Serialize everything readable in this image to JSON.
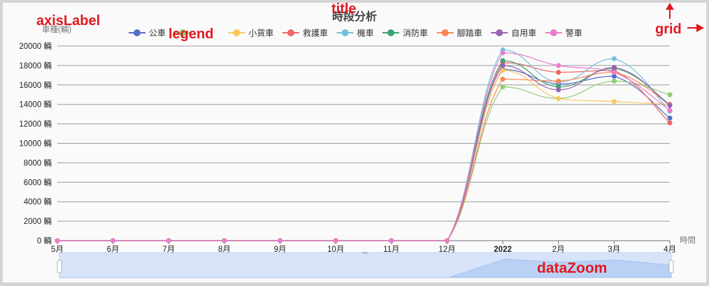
{
  "annotations": {
    "axis_label": "axisLabel",
    "title": "title",
    "legend": "legend",
    "grid": "grid",
    "data_zoom": "dataZoom",
    "color": "#e0191f"
  },
  "chart_data": {
    "type": "line",
    "title": "時段分析",
    "ylabel": "車種(輛)",
    "xlabel": "時間",
    "y_unit": "輛",
    "ylim": [
      0,
      20000
    ],
    "y_ticks": [
      0,
      2000,
      4000,
      6000,
      8000,
      10000,
      12000,
      14000,
      16000,
      18000,
      20000
    ],
    "categories": [
      "5月",
      "6月",
      "7月",
      "8月",
      "9月",
      "10月",
      "11月",
      "12月",
      "2022",
      "2月",
      "3月",
      "4月"
    ],
    "bold_categories": [
      "2022"
    ],
    "grid": true,
    "legend_position": "top",
    "smooth": true,
    "series": [
      {
        "name": "公車",
        "color": "#5470c6",
        "values": [
          0,
          0,
          0,
          0,
          0,
          0,
          0,
          0,
          17600,
          16100,
          16900,
          12600
        ]
      },
      {
        "name": "",
        "color": "#91cc75",
        "values": [
          0,
          0,
          0,
          0,
          0,
          0,
          0,
          0,
          15800,
          14600,
          16400,
          15000
        ]
      },
      {
        "name": "小貨車",
        "color": "#fac858",
        "values": [
          0,
          0,
          0,
          0,
          0,
          0,
          0,
          0,
          17500,
          14600,
          14300,
          14000
        ]
      },
      {
        "name": "救護車",
        "color": "#ee6666",
        "values": [
          0,
          0,
          0,
          0,
          0,
          0,
          0,
          0,
          18300,
          17300,
          17500,
          12100
        ]
      },
      {
        "name": "機車",
        "color": "#73c0de",
        "values": [
          0,
          0,
          0,
          0,
          0,
          0,
          0,
          0,
          19600,
          16300,
          18700,
          13300
        ]
      },
      {
        "name": "消防車",
        "color": "#3ba272",
        "values": [
          0,
          0,
          0,
          0,
          0,
          0,
          0,
          0,
          18500,
          15800,
          17700,
          14000
        ]
      },
      {
        "name": "腳踏車",
        "color": "#fc8452",
        "values": [
          0,
          0,
          0,
          0,
          0,
          0,
          0,
          0,
          16600,
          16400,
          17300,
          14000
        ]
      },
      {
        "name": "自用車",
        "color": "#9a60b4",
        "values": [
          0,
          0,
          0,
          0,
          0,
          0,
          0,
          0,
          18000,
          15500,
          17800,
          13900
        ]
      },
      {
        "name": "警車",
        "color": "#ea7ccc",
        "values": [
          0,
          0,
          0,
          0,
          0,
          0,
          0,
          0,
          19300,
          18000,
          17300,
          13400
        ]
      }
    ],
    "data_zoom": {
      "start_percent": 0,
      "end_percent": 100
    }
  }
}
